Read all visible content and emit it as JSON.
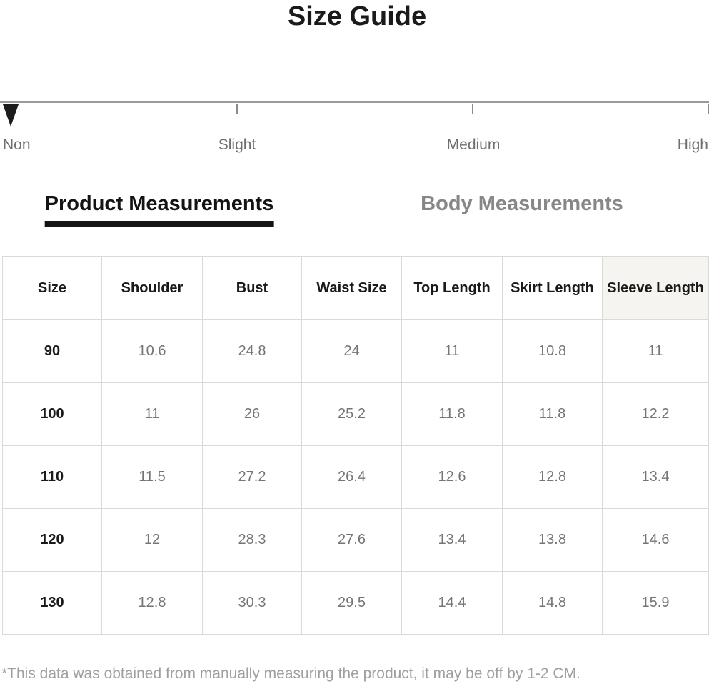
{
  "page": {
    "title": "Size Guide",
    "footnote": "*This data was obtained from manually measuring the product, it may be off by 1-2 CM."
  },
  "slider": {
    "levels": [
      "Non",
      "Slight",
      "Medium",
      "High"
    ],
    "selected": "Non"
  },
  "tabs": [
    {
      "label": "Product Measurements",
      "active": true
    },
    {
      "label": "Body Measurements",
      "active": false
    }
  ],
  "table": {
    "headers": [
      "Size",
      "Shoulder",
      "Bust",
      "Waist Size",
      "Top Length",
      "Skirt Length",
      "Sleeve Length"
    ],
    "rows": [
      [
        "90",
        "10.6",
        "24.8",
        "24",
        "11",
        "10.8",
        "11"
      ],
      [
        "100",
        "11",
        "26",
        "25.2",
        "11.8",
        "11.8",
        "12.2"
      ],
      [
        "110",
        "11.5",
        "27.2",
        "26.4",
        "12.6",
        "12.8",
        "13.4"
      ],
      [
        "120",
        "12",
        "28.3",
        "27.6",
        "13.4",
        "13.8",
        "14.6"
      ],
      [
        "130",
        "12.8",
        "30.3",
        "29.5",
        "14.4",
        "14.8",
        "15.9"
      ]
    ]
  },
  "colors": {
    "accent_text": "#1a1a1a",
    "muted_text": "#757575",
    "inactive_tab": "#878787",
    "table_border": "#dadada",
    "shaded_header": "#f5f4f1"
  }
}
